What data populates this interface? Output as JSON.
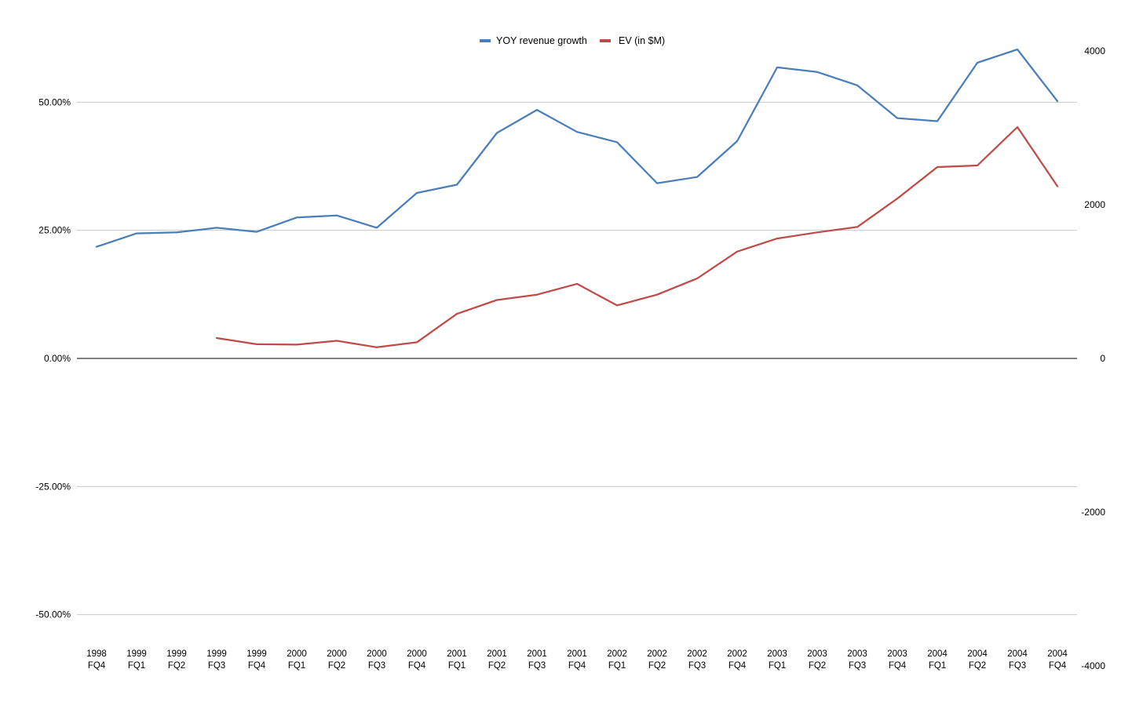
{
  "chart_data": {
    "type": "line",
    "title": "",
    "xlabel": "",
    "ylabel": "",
    "y2label": "",
    "legend_position": "top-center",
    "grid": true,
    "categories": [
      [
        "1998",
        "FQ4"
      ],
      [
        "1999",
        "FQ1"
      ],
      [
        "1999",
        "FQ2"
      ],
      [
        "1999",
        "FQ3"
      ],
      [
        "1999",
        "FQ4"
      ],
      [
        "2000",
        "FQ1"
      ],
      [
        "2000",
        "FQ2"
      ],
      [
        "2000",
        "FQ3"
      ],
      [
        "2000",
        "FQ4"
      ],
      [
        "2001",
        "FQ1"
      ],
      [
        "2001",
        "FQ2"
      ],
      [
        "2001",
        "FQ3"
      ],
      [
        "2001",
        "FQ4"
      ],
      [
        "2002",
        "FQ1"
      ],
      [
        "2002",
        "FQ2"
      ],
      [
        "2002",
        "FQ3"
      ],
      [
        "2002",
        "FQ4"
      ],
      [
        "2003",
        "FQ1"
      ],
      [
        "2003",
        "FQ2"
      ],
      [
        "2003",
        "FQ3"
      ],
      [
        "2003",
        "FQ4"
      ],
      [
        "2004",
        "FQ1"
      ],
      [
        "2004",
        "FQ2"
      ],
      [
        "2004",
        "FQ3"
      ],
      [
        "2004",
        "FQ4"
      ]
    ],
    "y_left": {
      "ticks": [
        50,
        25,
        0,
        -25,
        -50
      ],
      "tick_labels": [
        "50.00%",
        "25.00%",
        "0.00%",
        "-25.00%",
        "-50.00%"
      ],
      "range": [
        -60,
        60
      ],
      "unit": "percent"
    },
    "y_right": {
      "ticks": [
        4000,
        2000,
        0,
        -2000,
        -4000
      ],
      "tick_labels": [
        "4000",
        "2000",
        "0",
        "-2000",
        "-4000"
      ],
      "range": [
        -4000,
        4000
      ]
    },
    "series": [
      {
        "name": "YOY revenue growth",
        "axis": "left",
        "color": "#4a7ebb",
        "values": [
          21.8,
          24.4,
          24.6,
          25.5,
          24.7,
          27.5,
          27.9,
          25.5,
          32.3,
          33.9,
          44.0,
          48.5,
          44.2,
          42.2,
          34.2,
          35.4,
          42.4,
          56.8,
          55.9,
          53.3,
          46.9,
          46.3,
          57.7,
          60.3,
          50.2
        ]
      },
      {
        "name": "EV (in $M)",
        "axis": "right",
        "color": "#be4b48",
        "values": [
          null,
          null,
          null,
          265,
          185,
          180,
          230,
          145,
          210,
          580,
          760,
          830,
          970,
          690,
          830,
          1040,
          1390,
          1560,
          1640,
          1710,
          2080,
          2490,
          2510,
          3010,
          2240
        ]
      }
    ]
  }
}
